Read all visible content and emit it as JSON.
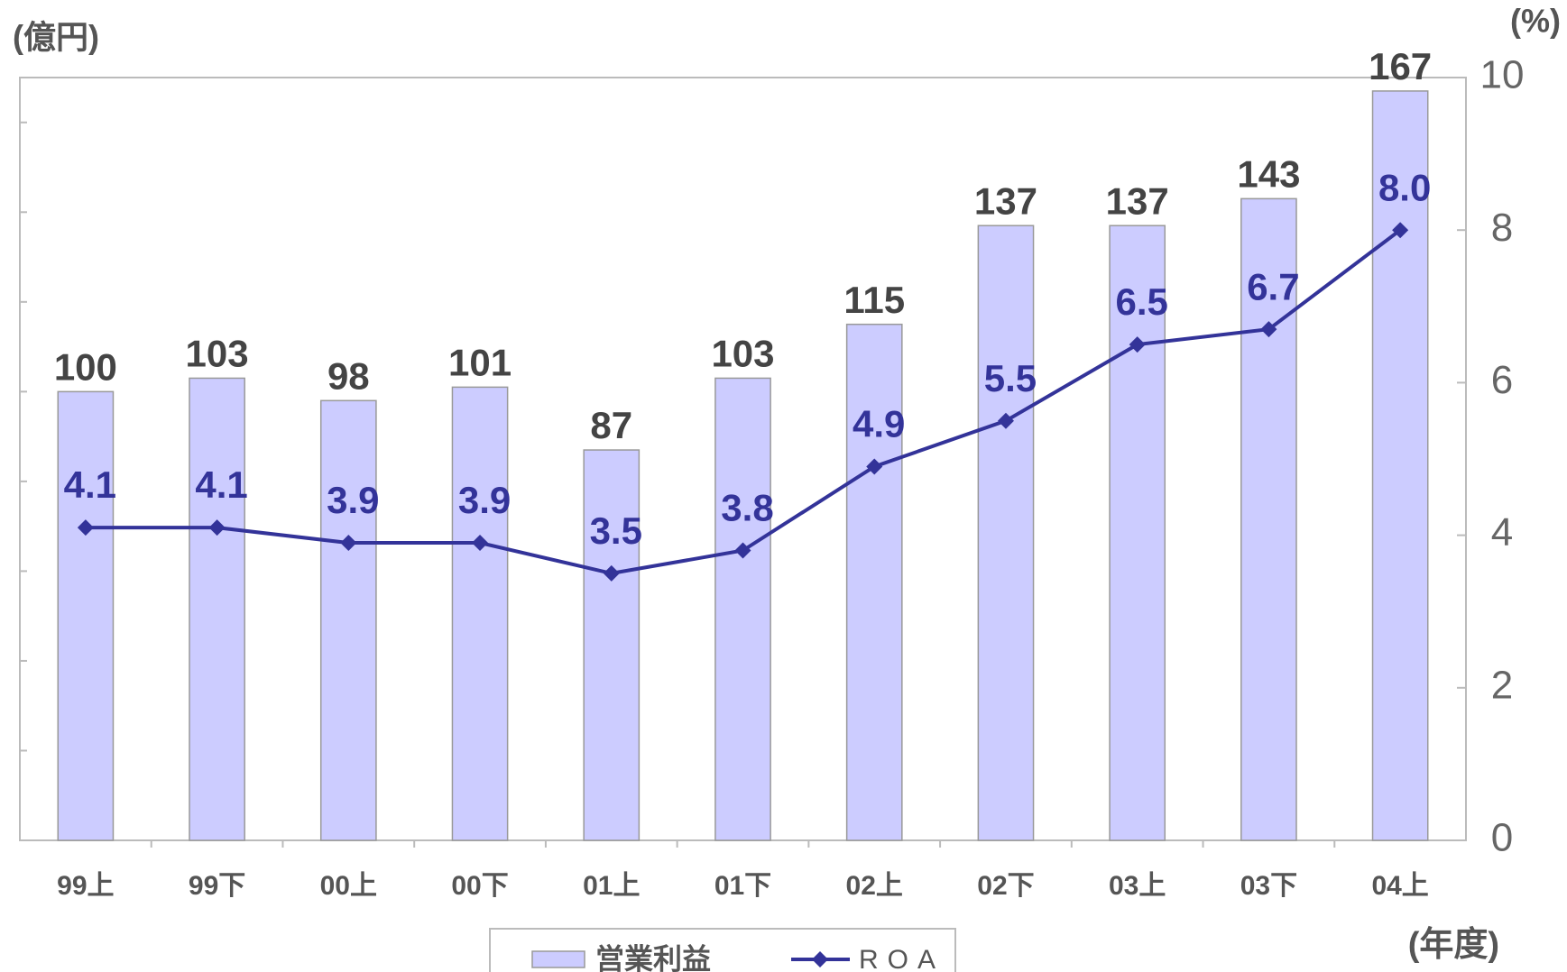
{
  "chart_data": {
    "type": "bar",
    "y_unit": "(億円)",
    "y2_unit": "(%)",
    "x_unit": "(年度)",
    "categories": [
      "99上",
      "99下",
      "00上",
      "00下",
      "01上",
      "01下",
      "02上",
      "02下",
      "03上",
      "03下",
      "04上"
    ],
    "series": [
      {
        "name": "営業利益",
        "type": "bar",
        "color": "#ccccff",
        "values": [
          100,
          103,
          98,
          101,
          87,
          103,
          115,
          137,
          137,
          143,
          167
        ]
      },
      {
        "name": "ROA",
        "type": "line",
        "axis": "y2",
        "color": "#333399",
        "values": [
          4.1,
          4.1,
          3.9,
          3.9,
          3.5,
          3.8,
          4.9,
          5.5,
          6.5,
          6.7,
          8.0
        ],
        "value_labels": [
          "4.1",
          "4.1",
          "3.9",
          "3.9",
          "3.5",
          "3.8",
          "4.9",
          "5.5",
          "6.5",
          "6.7",
          "8.0"
        ]
      }
    ],
    "ylim": [
      0,
      170
    ],
    "yticks": [
      0,
      20,
      40,
      60,
      80,
      100,
      120,
      140,
      160
    ],
    "y2lim": [
      0,
      10
    ],
    "y2ticks": [
      0,
      2,
      4,
      6,
      8,
      10
    ],
    "grid": false
  }
}
